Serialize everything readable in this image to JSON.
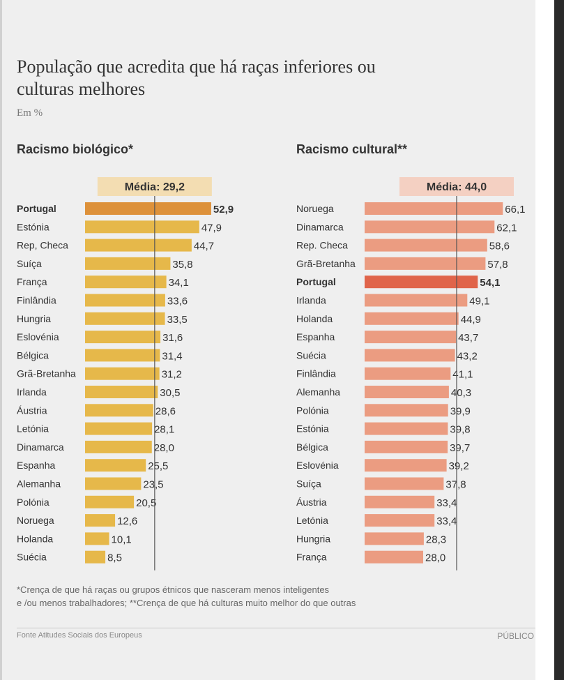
{
  "chart_title": "População que acredita que há raças inferiores ou culturas melhores",
  "chart_subtitle": "Em %",
  "footnote_line1": "*Crença de que há raças ou grupos étnicos que nasceram menos inteligentes",
  "footnote_line2": "e /ou menos trabalhadores; **Crença de que há culturas muito melhor do que outras",
  "source": "Fonte Atitudes Sociais dos Europeus",
  "brand": "PÚBLICO",
  "chart_data": [
    {
      "type": "bar",
      "orientation": "horizontal",
      "title": "Racismo biológico*",
      "average_label": "Média: 29,2",
      "average_value": 29.2,
      "highlight": "Portugal",
      "colors": {
        "bar": "#e6b84a",
        "highlight": "#dd913a",
        "average_box": "#f3ddb2"
      },
      "categories": [
        "Portugal",
        "Estónia",
        "Rep, Checa",
        "Suíça",
        "França",
        "Finlândia",
        "Hungria",
        "Eslovénia",
        "Bélgica",
        "Grã-Bretanha",
        "Irlanda",
        "Áustria",
        "Letónia",
        "Dinamarca",
        "Espanha",
        "Alemanha",
        "Polónia",
        "Noruega",
        "Holanda",
        "Suécia"
      ],
      "values": [
        52.9,
        47.9,
        44.7,
        35.8,
        34.1,
        33.6,
        33.5,
        31.6,
        31.4,
        31.2,
        30.5,
        28.6,
        28.1,
        28.0,
        25.5,
        23.5,
        20.5,
        12.6,
        10.1,
        8.5
      ],
      "value_labels": [
        "52,9",
        "47,9",
        "44,7",
        "35,8",
        "34,1",
        "33,6",
        "33,5",
        "31,6",
        "31,4",
        "31,2",
        "30,5",
        "28,6",
        "28,1",
        "28,0",
        "25,5",
        "23,5",
        "20,5",
        "12,6",
        "10,1",
        "8,5"
      ]
    },
    {
      "type": "bar",
      "orientation": "horizontal",
      "title": "Racismo cultural**",
      "average_label": "Média: 44,0",
      "average_value": 44.0,
      "highlight": "Portugal",
      "colors": {
        "bar": "#eb9c81",
        "highlight": "#e0644a",
        "average_box": "#f4d0c2"
      },
      "categories": [
        "Noruega",
        "Dinamarca",
        "Rep. Checa",
        "Grã-Bretanha",
        "Portugal",
        "Irlanda",
        "Holanda",
        "Espanha",
        "Suécia",
        "Finlândia",
        "Alemanha",
        "Polónia",
        "Estónia",
        "Bélgica",
        "Eslovénia",
        "Suíça",
        "Áustria",
        "Letónia",
        "Hungria",
        "França"
      ],
      "values": [
        66.1,
        62.1,
        58.6,
        57.8,
        54.1,
        49.1,
        44.9,
        43.7,
        43.2,
        41.1,
        40.3,
        39.9,
        39.8,
        39.7,
        39.2,
        37.8,
        33.4,
        33.4,
        28.3,
        28.0
      ],
      "value_labels": [
        "66,1",
        "62,1",
        "58,6",
        "57,8",
        "54,1",
        "49,1",
        "44,9",
        "43,7",
        "43,2",
        "41,1",
        "40,3",
        "39,9",
        "39,8",
        "39,7",
        "39,2",
        "37,8",
        "33,4",
        "33,4",
        "28,3",
        "28,0"
      ]
    }
  ]
}
